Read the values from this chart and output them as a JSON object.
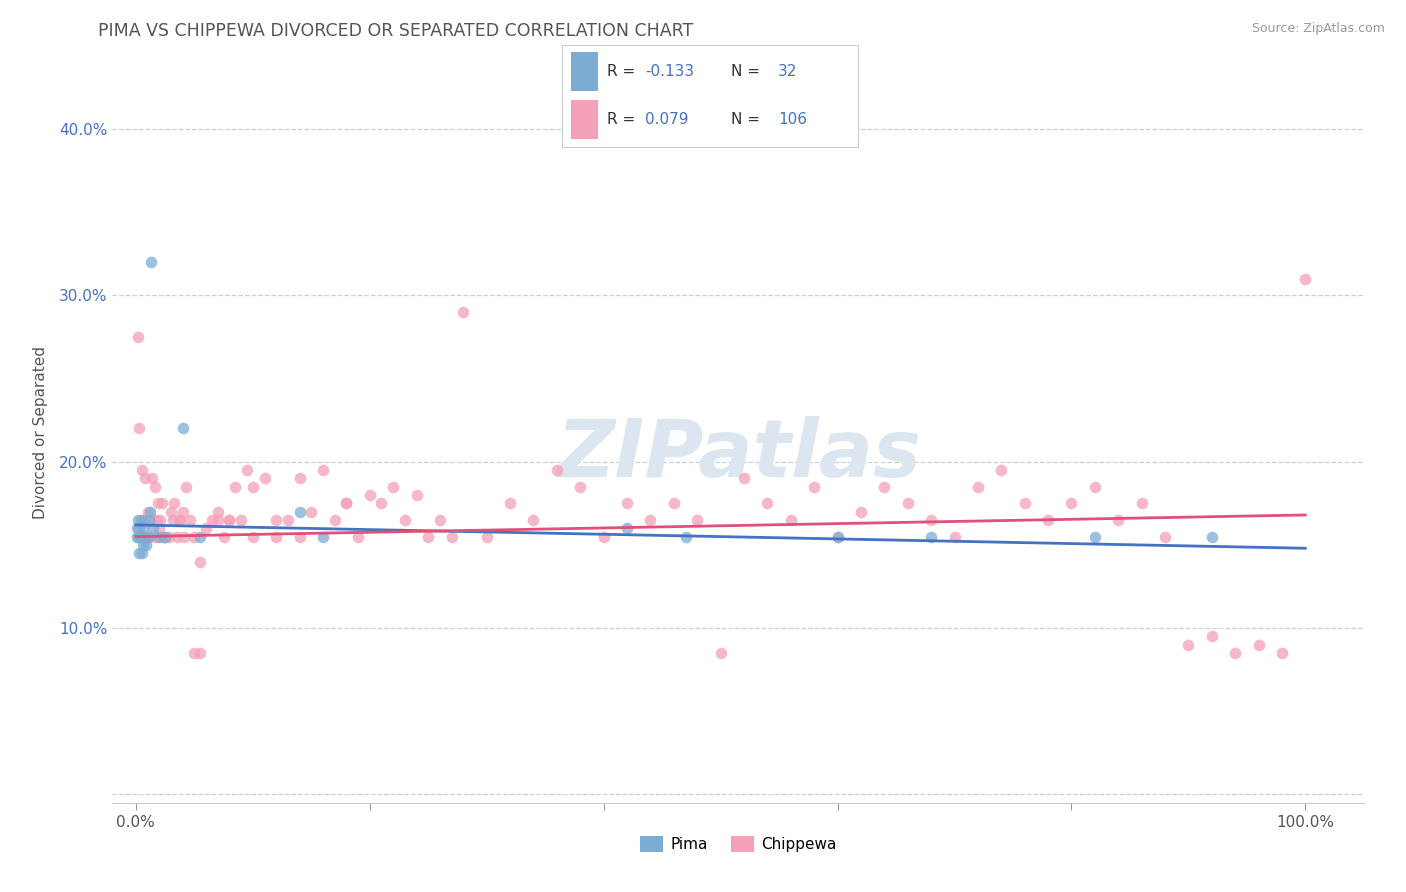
{
  "title": "PIMA VS CHIPPEWA DIVORCED OR SEPARATED CORRELATION CHART",
  "source_text": "Source: ZipAtlas.com",
  "ylabel": "Divorced or Separated",
  "legend_pima_R": -0.133,
  "legend_pima_N": 32,
  "legend_chippewa_R": 0.079,
  "legend_chippewa_N": 106,
  "pima_color": "#7badd4",
  "pima_line_color": "#4472c4",
  "chippewa_color": "#f4a0b8",
  "chippewa_line_color": "#e05078",
  "background_color": "#ffffff",
  "watermark": "ZIPatlas",
  "watermark_color": "#dce6f0",
  "grid_color": "#c8d0d8",
  "title_color": "#555555",
  "title_fontsize": 12.5,
  "tick_color": "#4472c4",
  "xlabel_color": "#555555",
  "ylabel_color": "#555555",
  "xlim": [
    -0.02,
    1.05
  ],
  "ylim": [
    -0.005,
    0.44
  ],
  "yticks": [
    0.0,
    0.1,
    0.2,
    0.3,
    0.4
  ],
  "ytick_labels": [
    "",
    "10.0%",
    "20.0%",
    "30.0%",
    "40.0%"
  ],
  "xtick_positions": [
    0.0,
    0.2,
    0.4,
    0.6,
    0.8,
    1.0
  ],
  "pima_x": [
    0.001,
    0.001,
    0.002,
    0.002,
    0.003,
    0.003,
    0.004,
    0.004,
    0.005,
    0.005,
    0.006,
    0.006,
    0.007,
    0.008,
    0.009,
    0.01,
    0.011,
    0.012,
    0.013,
    0.015,
    0.02,
    0.025,
    0.04,
    0.055,
    0.14,
    0.16,
    0.42,
    0.47,
    0.6,
    0.68,
    0.82,
    0.92
  ],
  "pima_y": [
    0.155,
    0.16,
    0.155,
    0.165,
    0.145,
    0.16,
    0.155,
    0.165,
    0.145,
    0.155,
    0.15,
    0.16,
    0.155,
    0.155,
    0.15,
    0.155,
    0.165,
    0.17,
    0.32,
    0.16,
    0.155,
    0.155,
    0.22,
    0.155,
    0.17,
    0.155,
    0.16,
    0.155,
    0.155,
    0.155,
    0.155,
    0.155
  ],
  "chippewa_x": [
    0.002,
    0.003,
    0.005,
    0.006,
    0.008,
    0.01,
    0.012,
    0.014,
    0.016,
    0.018,
    0.02,
    0.022,
    0.025,
    0.028,
    0.03,
    0.032,
    0.035,
    0.038,
    0.04,
    0.043,
    0.046,
    0.05,
    0.055,
    0.06,
    0.065,
    0.07,
    0.075,
    0.08,
    0.085,
    0.09,
    0.095,
    0.1,
    0.11,
    0.12,
    0.13,
    0.14,
    0.15,
    0.16,
    0.17,
    0.18,
    0.19,
    0.2,
    0.21,
    0.22,
    0.23,
    0.24,
    0.25,
    0.26,
    0.27,
    0.28,
    0.3,
    0.32,
    0.34,
    0.36,
    0.38,
    0.4,
    0.42,
    0.44,
    0.46,
    0.48,
    0.5,
    0.52,
    0.54,
    0.56,
    0.58,
    0.6,
    0.62,
    0.64,
    0.66,
    0.68,
    0.7,
    0.72,
    0.74,
    0.76,
    0.78,
    0.8,
    0.82,
    0.84,
    0.86,
    0.88,
    0.9,
    0.92,
    0.94,
    0.96,
    0.98,
    1.0,
    0.004,
    0.007,
    0.009,
    0.011,
    0.015,
    0.017,
    0.019,
    0.021,
    0.023,
    0.033,
    0.037,
    0.041,
    0.05,
    0.055,
    0.07,
    0.08,
    0.1,
    0.12,
    0.14,
    0.18
  ],
  "chippewa_y": [
    0.275,
    0.22,
    0.195,
    0.165,
    0.19,
    0.17,
    0.155,
    0.19,
    0.185,
    0.165,
    0.16,
    0.175,
    0.155,
    0.155,
    0.17,
    0.165,
    0.155,
    0.165,
    0.17,
    0.185,
    0.165,
    0.155,
    0.14,
    0.16,
    0.165,
    0.17,
    0.155,
    0.165,
    0.185,
    0.165,
    0.195,
    0.155,
    0.19,
    0.155,
    0.165,
    0.19,
    0.17,
    0.195,
    0.165,
    0.175,
    0.155,
    0.18,
    0.175,
    0.185,
    0.165,
    0.18,
    0.155,
    0.165,
    0.155,
    0.29,
    0.155,
    0.175,
    0.165,
    0.195,
    0.185,
    0.155,
    0.175,
    0.165,
    0.175,
    0.165,
    0.085,
    0.19,
    0.175,
    0.165,
    0.185,
    0.155,
    0.17,
    0.185,
    0.175,
    0.165,
    0.155,
    0.185,
    0.195,
    0.175,
    0.165,
    0.175,
    0.185,
    0.165,
    0.175,
    0.155,
    0.09,
    0.095,
    0.085,
    0.09,
    0.085,
    0.31,
    0.155,
    0.165,
    0.155,
    0.155,
    0.165,
    0.155,
    0.175,
    0.165,
    0.155,
    0.175,
    0.165,
    0.155,
    0.085,
    0.085,
    0.165,
    0.165,
    0.185,
    0.165,
    0.155,
    0.175
  ]
}
